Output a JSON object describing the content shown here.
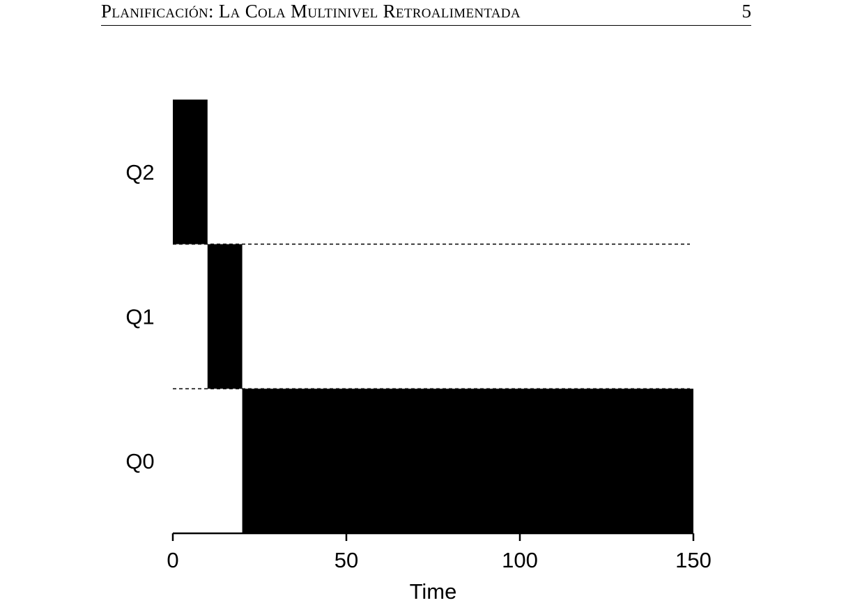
{
  "header": {
    "title": "Planificación: La Cola Multinivel Retroalimentada",
    "page_number": "5"
  },
  "chart_data": {
    "type": "gantt",
    "xlabel": "Time",
    "xlim": [
      0,
      150
    ],
    "xticks": [
      0,
      50,
      100,
      150
    ],
    "levels": [
      "Q0",
      "Q1",
      "Q2"
    ],
    "segments": [
      {
        "level": "Q2",
        "start": 0,
        "end": 10
      },
      {
        "level": "Q1",
        "start": 10,
        "end": 20
      },
      {
        "level": "Q0",
        "start": 20,
        "end": 150
      }
    ],
    "level_separators": "dashed",
    "bar_color": "#000000"
  }
}
